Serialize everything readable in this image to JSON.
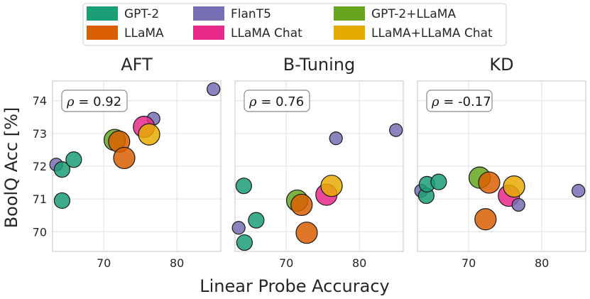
{
  "figure": {
    "ylabel": "BoolQ Acc [%]",
    "xlabel": "Linear Probe Accuracy"
  },
  "legend": [
    {
      "label": "GPT-2",
      "color": "#1b9e77"
    },
    {
      "label": "FlanT5",
      "color": "#7570b3"
    },
    {
      "label": "GPT-2+LLaMA",
      "color": "#66a61e"
    },
    {
      "label": "LLaMA",
      "color": "#d95f02"
    },
    {
      "label": "LLaMA Chat",
      "color": "#e7298a"
    },
    {
      "label": "LLaMA+LLaMA Chat",
      "color": "#e6ab02"
    }
  ],
  "chart_data": [
    {
      "type": "scatter",
      "title": "AFT",
      "annotation": "ρ = 0.92",
      "rho_value": "0.92",
      "xlim": [
        63,
        86
      ],
      "ylim": [
        69.4,
        74.6
      ],
      "xticks": [
        70,
        80
      ],
      "yticks": [
        70,
        71,
        72,
        73,
        74
      ],
      "points": [
        {
          "series": "FlanT5",
          "x": 63.5,
          "y": 72.05,
          "size": "small"
        },
        {
          "series": "GPT-2",
          "x": 64.3,
          "y": 71.9,
          "size": "medium"
        },
        {
          "series": "GPT-2",
          "x": 64.3,
          "y": 70.95,
          "size": "medium"
        },
        {
          "series": "GPT-2",
          "x": 65.9,
          "y": 72.2,
          "size": "medium"
        },
        {
          "series": "GPT-2+LLaMA",
          "x": 71.5,
          "y": 72.8,
          "size": "large"
        },
        {
          "series": "LLaMA",
          "x": 72.1,
          "y": 72.75,
          "size": "large"
        },
        {
          "series": "LLaMA",
          "x": 72.8,
          "y": 72.25,
          "size": "large"
        },
        {
          "series": "FlanT5",
          "x": 76.8,
          "y": 73.45,
          "size": "small"
        },
        {
          "series": "LLaMA Chat",
          "x": 75.5,
          "y": 73.2,
          "size": "large"
        },
        {
          "series": "LLaMA+LLaMA Chat",
          "x": 76.2,
          "y": 72.97,
          "size": "large"
        },
        {
          "series": "FlanT5",
          "x": 85.0,
          "y": 74.35,
          "size": "small"
        }
      ]
    },
    {
      "type": "scatter",
      "title": "B-Tuning",
      "annotation": "ρ = 0.76",
      "rho_value": "0.76",
      "xlim": [
        63,
        86
      ],
      "ylim": [
        69.4,
        74.6
      ],
      "xticks": [
        70,
        80
      ],
      "yticks": [
        70,
        71,
        72,
        73,
        74
      ],
      "points": [
        {
          "series": "FlanT5",
          "x": 63.5,
          "y": 70.12,
          "size": "small"
        },
        {
          "series": "GPT-2",
          "x": 64.2,
          "y": 71.4,
          "size": "medium"
        },
        {
          "series": "GPT-2",
          "x": 64.3,
          "y": 69.67,
          "size": "medium"
        },
        {
          "series": "GPT-2",
          "x": 65.9,
          "y": 70.35,
          "size": "medium"
        },
        {
          "series": "GPT-2+LLaMA",
          "x": 71.5,
          "y": 70.95,
          "size": "large"
        },
        {
          "series": "LLaMA",
          "x": 72.1,
          "y": 70.82,
          "size": "large"
        },
        {
          "series": "LLaMA",
          "x": 72.8,
          "y": 69.97,
          "size": "large"
        },
        {
          "series": "LLaMA Chat",
          "x": 75.5,
          "y": 71.13,
          "size": "large"
        },
        {
          "series": "LLaMA+LLaMA Chat",
          "x": 76.2,
          "y": 71.4,
          "size": "large"
        },
        {
          "series": "FlanT5",
          "x": 76.8,
          "y": 72.85,
          "size": "small"
        },
        {
          "series": "FlanT5",
          "x": 85.0,
          "y": 73.1,
          "size": "small"
        }
      ]
    },
    {
      "type": "scatter",
      "title": "KD",
      "annotation": "ρ = -0.17",
      "rho_value": "-0.17",
      "xlim": [
        63,
        86
      ],
      "ylim": [
        69.4,
        74.6
      ],
      "xticks": [
        70,
        80
      ],
      "yticks": [
        70,
        71,
        72,
        73,
        74
      ],
      "points": [
        {
          "series": "FlanT5",
          "x": 63.5,
          "y": 71.25,
          "size": "small"
        },
        {
          "series": "GPT-2",
          "x": 64.2,
          "y": 71.1,
          "size": "medium"
        },
        {
          "series": "GPT-2",
          "x": 64.3,
          "y": 71.45,
          "size": "medium"
        },
        {
          "series": "GPT-2",
          "x": 65.9,
          "y": 71.52,
          "size": "medium"
        },
        {
          "series": "GPT-2+LLaMA",
          "x": 71.5,
          "y": 71.65,
          "size": "large"
        },
        {
          "series": "LLaMA",
          "x": 72.8,
          "y": 71.5,
          "size": "large"
        },
        {
          "series": "LLaMA",
          "x": 72.3,
          "y": 70.38,
          "size": "large"
        },
        {
          "series": "LLaMA Chat",
          "x": 75.5,
          "y": 71.1,
          "size": "large"
        },
        {
          "series": "LLaMA+LLaMA Chat",
          "x": 76.2,
          "y": 71.38,
          "size": "large"
        },
        {
          "series": "FlanT5",
          "x": 76.8,
          "y": 70.82,
          "size": "small"
        },
        {
          "series": "FlanT5",
          "x": 85.0,
          "y": 71.25,
          "size": "small"
        }
      ]
    }
  ]
}
